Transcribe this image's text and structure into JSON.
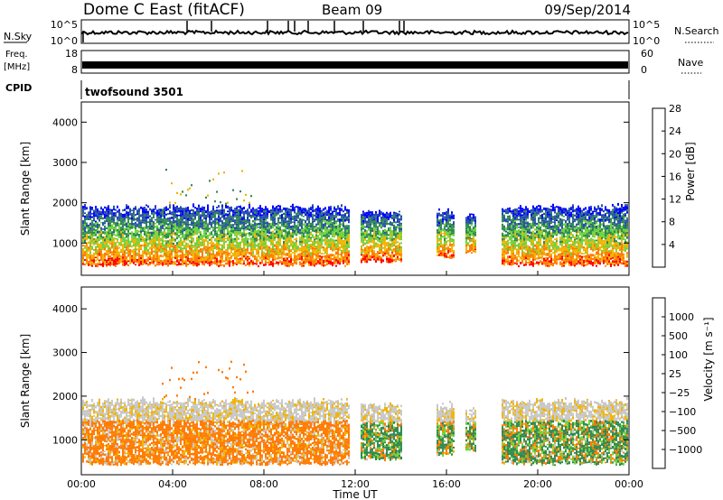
{
  "header": {
    "title": "Dome C East (fitACF)",
    "beam": "Beam 09",
    "date": "09/Sep/2014"
  },
  "strips": {
    "nsky": {
      "label": "N.Sky",
      "tick_top": "10^5",
      "tick_bottom": "10^0"
    },
    "nsearch": {
      "label": "N.Search",
      "tick_top": "10^5",
      "tick_bottom": "10^0"
    },
    "freq": {
      "label_line1": "Freq.",
      "label_line2": "[MHz]",
      "tick_top": "18",
      "tick_bottom": "8"
    },
    "nave": {
      "label": "Nave",
      "tick_top": "60",
      "tick_bottom": "0"
    },
    "cpid": {
      "label": "CPID",
      "value": "twofsound 3501"
    }
  },
  "chart_data": [
    {
      "type": "heatmap",
      "name": "power-panel",
      "ylabel": "Slant Range [km]",
      "ylim": [
        200,
        4500
      ],
      "yticks": [
        "1000",
        "2000",
        "3000",
        "4000"
      ],
      "colorbar": {
        "label": "Power [dB]",
        "ticks": [
          "4",
          "8",
          "12",
          "16",
          "20",
          "24",
          "28"
        ],
        "colors": [
          "#0000ff",
          "#2850a8",
          "#2f8a4f",
          "#6fd23c",
          "#f0b400",
          "#ff7a00",
          "#ff0000"
        ]
      },
      "backscatter_bands": [
        {
          "start_h": 0.0,
          "end_h": 11.7,
          "min_km": 400,
          "max_km": 1800
        },
        {
          "start_h": 12.2,
          "end_h": 14.0,
          "min_km": 500,
          "max_km": 1700
        },
        {
          "start_h": 15.5,
          "end_h": 16.3,
          "min_km": 600,
          "max_km": 1700
        },
        {
          "start_h": 16.8,
          "end_h": 17.3,
          "min_km": 700,
          "max_km": 1600
        },
        {
          "start_h": 18.4,
          "end_h": 24.0,
          "min_km": 400,
          "max_km": 1800
        }
      ]
    },
    {
      "type": "heatmap",
      "name": "velocity-panel",
      "ylabel": "Slant Range [km]",
      "xlabel": "Time UT",
      "ylim": [
        200,
        4500
      ],
      "yticks": [
        "1000",
        "2000",
        "3000",
        "4000"
      ],
      "xticks": [
        "00:00",
        "04:00",
        "08:00",
        "12:00",
        "16:00",
        "20:00",
        "00:00"
      ],
      "colorbar": {
        "label": "Velocity [m s⁻¹]",
        "ticks": [
          "1000",
          "500",
          "100",
          "25",
          "−25",
          "−100",
          "−500",
          "−1000"
        ],
        "colors": [
          "#2040c8",
          "#3a70b0",
          "#2f8a4f",
          "#6fd23c",
          "#c8c8c8",
          "#f0b400",
          "#ff7a00",
          "#ff3000",
          "#ff0000"
        ]
      },
      "backscatter_bands": [
        {
          "start_h": 0.0,
          "end_h": 11.7,
          "min_km": 400,
          "max_km": 1800
        },
        {
          "start_h": 12.2,
          "end_h": 14.0,
          "min_km": 500,
          "max_km": 1700
        },
        {
          "start_h": 15.5,
          "end_h": 16.3,
          "min_km": 600,
          "max_km": 1700
        },
        {
          "start_h": 16.8,
          "end_h": 17.3,
          "min_km": 700,
          "max_km": 1600
        },
        {
          "start_h": 18.4,
          "end_h": 24.0,
          "min_km": 400,
          "max_km": 1800
        }
      ]
    }
  ]
}
